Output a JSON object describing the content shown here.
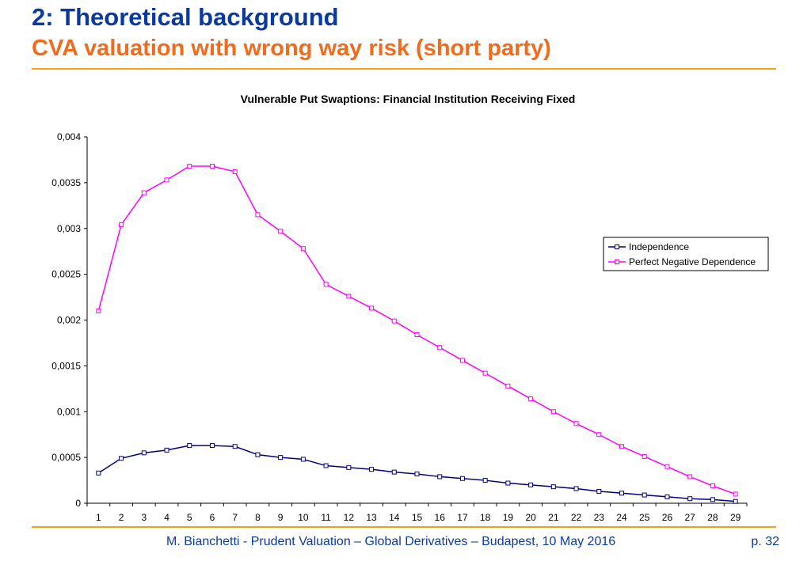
{
  "header": {
    "title": "2: Theoretical background",
    "subtitle": "CVA valuation with wrong way risk (short party)"
  },
  "footer": {
    "text": "M. Bianchetti - Prudent Valuation – Global Derivatives – Budapest, 10 May 2016",
    "page": "p. 32"
  },
  "colors": {
    "title": "#0b3a9e",
    "subtitle": "#f26b1d",
    "rule": "#f6a01a",
    "independence": "#000080",
    "negative_dependence": "#ff00ff"
  },
  "chart_data": {
    "type": "line",
    "title": "Vulnerable Put Swaptions: Financial Institution Receiving Fixed",
    "xlabel": "",
    "ylabel": "",
    "categories": [
      "1",
      "2",
      "3",
      "4",
      "5",
      "6",
      "7",
      "8",
      "9",
      "10",
      "11",
      "12",
      "13",
      "14",
      "15",
      "16",
      "17",
      "18",
      "19",
      "20",
      "21",
      "22",
      "23",
      "24",
      "25",
      "26",
      "27",
      "28",
      "29"
    ],
    "ylim": [
      0,
      0.004
    ],
    "yticks": [
      "0",
      "0,0005",
      "0,001",
      "0,0015",
      "0,002",
      "0,0025",
      "0,003",
      "0,0035",
      "0,004"
    ],
    "grid": false,
    "legend_position": "right",
    "series": [
      {
        "name": "Independence",
        "color": "#000080",
        "values": [
          0.00033,
          0.00049,
          0.00055,
          0.00058,
          0.00063,
          0.00063,
          0.00062,
          0.00053,
          0.0005,
          0.00048,
          0.00041,
          0.00039,
          0.00037,
          0.00034,
          0.00032,
          0.00029,
          0.00027,
          0.00025,
          0.00022,
          0.0002,
          0.00018,
          0.00016,
          0.00013,
          0.00011,
          9e-05,
          7e-05,
          5e-05,
          4e-05,
          2e-05
        ]
      },
      {
        "name": "Perfect Negative Dependence",
        "color": "#ff00ff",
        "values": [
          0.0021,
          0.00304,
          0.00339,
          0.00353,
          0.00368,
          0.00368,
          0.00362,
          0.00315,
          0.00297,
          0.00278,
          0.00239,
          0.00226,
          0.00213,
          0.00199,
          0.00184,
          0.0017,
          0.00156,
          0.00142,
          0.00128,
          0.00114,
          0.001,
          0.00087,
          0.00075,
          0.00062,
          0.00051,
          0.0004,
          0.00029,
          0.00019,
          0.0001
        ]
      }
    ]
  }
}
